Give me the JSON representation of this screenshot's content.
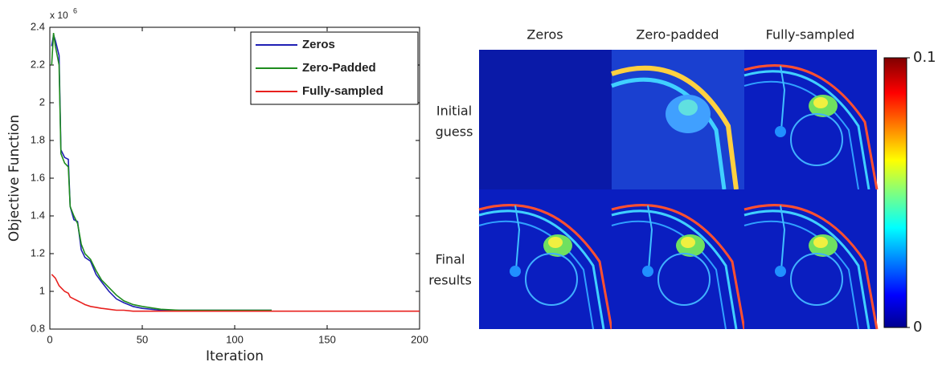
{
  "chart_data": {
    "type": "line",
    "xlabel": "Iteration",
    "ylabel": "Objective Function",
    "y_multiplier": {
      "base": "x 10",
      "exponent": "6"
    },
    "x": [
      1,
      2,
      3,
      5,
      6,
      8,
      10,
      11,
      13,
      15,
      17,
      19,
      22,
      25,
      28,
      32,
      36,
      40,
      45,
      50,
      60,
      70,
      120,
      200
    ],
    "series": [
      {
        "name": "Zeros",
        "color": "#1f1fb4",
        "values": [
          2.3,
          2.36,
          2.33,
          2.25,
          1.75,
          1.71,
          1.7,
          1.45,
          1.38,
          1.37,
          1.22,
          1.18,
          1.16,
          1.09,
          1.05,
          1.0,
          0.96,
          0.94,
          0.92,
          0.91,
          0.9,
          0.9,
          0.9,
          null
        ]
      },
      {
        "name": "Zero-Padded",
        "color": "#1e8c1e",
        "values": [
          2.2,
          2.37,
          2.3,
          2.2,
          1.73,
          1.68,
          1.66,
          1.45,
          1.4,
          1.36,
          1.25,
          1.2,
          1.17,
          1.11,
          1.06,
          1.02,
          0.98,
          0.95,
          0.93,
          0.92,
          0.905,
          0.9,
          0.9,
          null
        ]
      },
      {
        "name": "Fully-sampled",
        "color": "#e8201e",
        "values": [
          1.09,
          1.08,
          1.07,
          1.03,
          1.02,
          1.0,
          0.99,
          0.97,
          0.96,
          0.95,
          0.94,
          0.93,
          0.92,
          0.915,
          0.91,
          0.905,
          0.9,
          0.9,
          0.895,
          0.895,
          0.895,
          0.895,
          0.895,
          0.895
        ]
      }
    ],
    "xlim": [
      0,
      200
    ],
    "xticks": [
      0,
      50,
      100,
      150,
      200
    ],
    "ylim": [
      0.8,
      2.4
    ],
    "yticks": [
      0.8,
      1,
      1.2,
      1.4,
      1.6,
      1.8,
      2,
      2.2,
      2.4
    ],
    "legend": "upper right"
  },
  "images": {
    "columns": [
      "Zeros",
      "Zero-padded",
      "Fully-sampled"
    ],
    "rows": [
      [
        "Initial",
        "guess"
      ],
      [
        "Final",
        "results"
      ]
    ],
    "colorbar": {
      "lim": [
        0,
        0.1
      ],
      "ticks": [
        0,
        0.1
      ]
    }
  }
}
